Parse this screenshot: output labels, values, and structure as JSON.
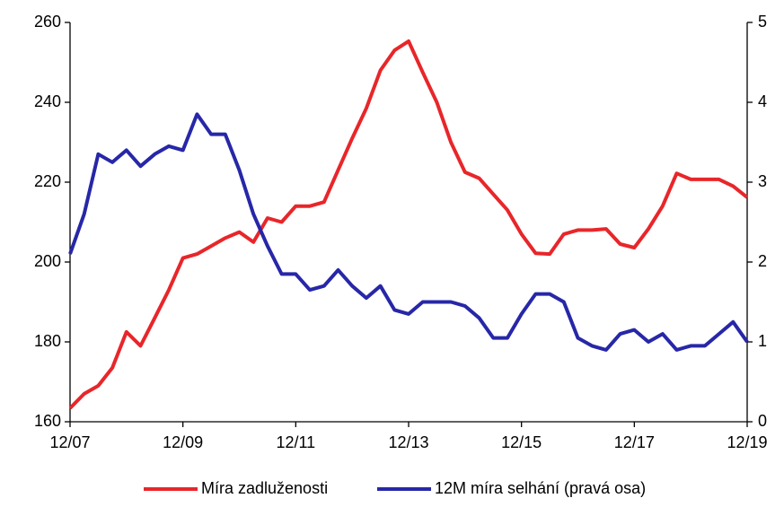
{
  "chart_data": {
    "type": "line",
    "categories": [
      "12/07",
      null,
      null,
      null,
      null,
      null,
      null,
      null,
      "12/09",
      null,
      null,
      null,
      null,
      null,
      null,
      null,
      "12/11",
      null,
      null,
      null,
      null,
      null,
      null,
      null,
      "12/13",
      null,
      null,
      null,
      null,
      null,
      null,
      null,
      "12/15",
      null,
      null,
      null,
      null,
      null,
      null,
      null,
      "12/17",
      null,
      null,
      null,
      null,
      null,
      null,
      null,
      "12/19"
    ],
    "series": [
      {
        "name": "Míra zadluženosti",
        "color": "#e8262a",
        "axis": "y",
        "values": [
          163.4,
          167,
          169,
          173.5,
          182.5,
          179,
          186,
          193,
          201,
          202,
          204,
          206,
          207.5,
          205,
          211,
          210,
          214,
          214,
          215,
          223,
          231,
          238.5,
          248,
          253,
          255.3,
          247.5,
          240,
          230,
          222.5,
          221,
          217,
          213,
          207,
          202.2,
          202,
          207,
          208,
          208,
          208.3,
          204.5,
          203.6,
          208.3,
          214,
          222.2,
          220.7,
          220.7,
          220.7,
          219,
          216.2
        ]
      },
      {
        "name": "12M míra selhání (pravá osa)",
        "color": "#2727a8",
        "axis": "y2",
        "values": [
          2.1,
          2.6,
          3.35,
          3.25,
          3.4,
          3.2,
          3.35,
          3.45,
          3.4,
          3.85,
          3.6,
          3.6,
          3.15,
          2.6,
          2.2,
          1.85,
          1.85,
          1.65,
          1.7,
          1.9,
          1.7,
          1.55,
          1.7,
          1.4,
          1.35,
          1.5,
          1.5,
          1.5,
          1.45,
          1.3,
          1.05,
          1.05,
          1.35,
          1.6,
          1.6,
          1.5,
          1.05,
          0.95,
          0.9,
          1.1,
          1.15,
          1.0,
          1.1,
          0.9,
          0.95,
          0.95,
          1.1,
          1.25,
          1.0
        ]
      }
    ],
    "ylim": [
      160,
      260
    ],
    "yticks": [
      160,
      180,
      200,
      220,
      240,
      260
    ],
    "y2lim": [
      0,
      5
    ],
    "y2ticks": [
      0,
      1,
      2,
      3,
      4,
      5
    ],
    "legend": "bottom",
    "grid": false
  }
}
